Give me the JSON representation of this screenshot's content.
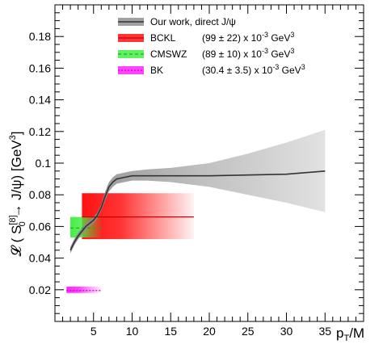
{
  "chart_data": {
    "type": "line",
    "title": "",
    "xlabel": "p",
    "xlabel_sub": "T",
    "xlabel_suffix": "/M",
    "ylabel": "𝓛 ( S",
    "ylabel_sup": "[8]",
    "ylabel_sub": "0",
    "ylabel_rest": " → J/ψ)  [GeV",
    "ylabel_sup2": "3",
    "ylabel_end": "]",
    "xlim": [
      0,
      40
    ],
    "ylim": [
      0,
      0.2
    ],
    "xticks": [
      5,
      10,
      15,
      20,
      25,
      30,
      35
    ],
    "xtick_labels": [
      "5",
      "10",
      "15",
      "20",
      "25",
      "30",
      "35"
    ],
    "yticks": [
      0.02,
      0.04,
      0.06,
      0.08,
      0.1,
      0.12,
      0.14,
      0.16,
      0.18
    ],
    "ytick_labels": [
      "0.02",
      "0.04",
      "0.06",
      "0.08",
      "0.1",
      "0.12",
      "0.14",
      "0.16",
      "0.18"
    ],
    "legend_position": "top-center",
    "series": [
      {
        "name": "Our work, direct J/ψ",
        "color": "#333333",
        "band_color": "#8a8a8a",
        "x": [
          2.0,
          2.5,
          3.0,
          3.5,
          4.0,
          4.5,
          5.0,
          5.5,
          6.0,
          6.5,
          7.0,
          7.5,
          8.0,
          9.0,
          10.0,
          12.0,
          15.0,
          20.0,
          25.0,
          30.0,
          35.0
        ],
        "y": [
          0.045,
          0.05,
          0.054,
          0.057,
          0.06,
          0.062,
          0.064,
          0.067,
          0.072,
          0.079,
          0.085,
          0.088,
          0.09,
          0.091,
          0.092,
          0.092,
          0.092,
          0.092,
          0.0925,
          0.093,
          0.095
        ],
        "lower": [
          0.043,
          0.048,
          0.052,
          0.055,
          0.058,
          0.06,
          0.062,
          0.065,
          0.07,
          0.076,
          0.082,
          0.085,
          0.087,
          0.088,
          0.089,
          0.089,
          0.088,
          0.085,
          0.08,
          0.075,
          0.069
        ],
        "upper": [
          0.047,
          0.052,
          0.056,
          0.059,
          0.062,
          0.064,
          0.066,
          0.069,
          0.074,
          0.082,
          0.088,
          0.091,
          0.093,
          0.094,
          0.095,
          0.096,
          0.097,
          0.1,
          0.106,
          0.113,
          0.121
        ]
      },
      {
        "name": "BCKL",
        "value_text": "(99 ± 22) x 10",
        "value_exp": "-3",
        "value_unit": " GeV",
        "value_unit_exp": "3",
        "color": "#cc0000",
        "fill": "#ff1111",
        "central": 0.066,
        "low": 0.052,
        "high": 0.081,
        "x_range": [
          3.5,
          18.0
        ]
      },
      {
        "name": "CMSWZ",
        "value_text": "(89 ± 10) x 10",
        "value_exp": "-3",
        "value_unit": " GeV",
        "value_unit_exp": "3",
        "color": "#22aa22",
        "fill": "#44ee44",
        "central": 0.059,
        "low": 0.053,
        "high": 0.066,
        "x_range": [
          2.0,
          6.0
        ]
      },
      {
        "name": "BK",
        "value_text": "(30.4 ± 3.5) x 10",
        "value_exp": "-3",
        "value_unit": " GeV",
        "value_unit_exp": "3",
        "color": "#cc00cc",
        "fill": "#ff22ff",
        "central": 0.0195,
        "low": 0.018,
        "high": 0.022,
        "x_range": [
          1.5,
          6.0
        ]
      }
    ]
  }
}
